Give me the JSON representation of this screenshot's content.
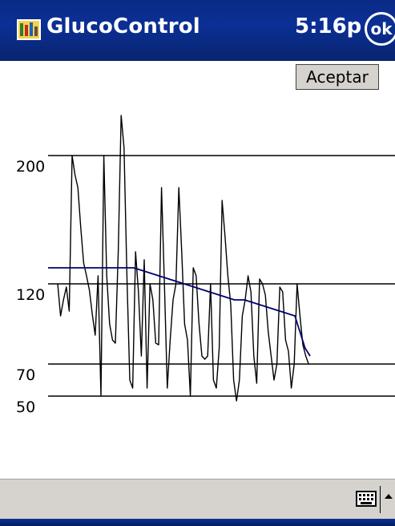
{
  "titlebar": {
    "app_title": "GlucoControl",
    "clock": "5:16p",
    "ok_label": "ok",
    "icon": "app-icon"
  },
  "toolbar": {
    "accept_label": "Aceptar"
  },
  "chart_data": {
    "type": "line",
    "title": "",
    "xlabel": "",
    "ylabel": "",
    "ylim": [
      0,
      250
    ],
    "y_tick_labels": [
      "200",
      "120",
      "70",
      "50"
    ],
    "reference_lines": [
      200,
      120,
      70,
      50
    ],
    "grid": false,
    "series": [
      {
        "color": "#000000",
        "values": [
          120,
          100,
          110,
          118,
          103,
          200,
          188,
          180,
          155,
          133,
          125,
          116,
          101,
          88,
          125,
          50,
          200,
          125,
          95,
          85,
          83,
          140,
          225,
          205,
          125,
          60,
          55,
          140,
          115,
          75,
          135,
          55,
          120,
          110,
          83,
          82,
          180,
          120,
          55,
          85,
          110,
          120,
          180,
          140,
          95,
          85,
          50,
          130,
          125,
          95,
          75,
          73,
          75,
          120,
          60,
          55,
          80,
          172,
          150,
          125,
          107,
          60,
          47,
          60,
          100,
          110,
          125,
          115,
          75,
          58,
          123,
          120,
          113,
          90,
          75,
          60,
          70,
          118,
          115,
          85,
          78,
          55,
          70,
          120,
          100,
          82,
          75,
          70
        ]
      },
      {
        "color": "#00006e",
        "values": [
          130,
          130,
          130,
          130,
          130,
          130,
          130,
          130,
          130,
          130,
          130,
          130,
          130,
          130,
          130,
          130,
          130,
          130,
          129,
          128,
          127,
          126,
          125,
          124,
          123,
          122,
          121,
          120,
          119,
          118,
          117,
          116,
          115,
          114,
          113,
          112,
          111,
          110,
          110,
          110,
          109,
          108,
          107,
          106,
          105,
          104,
          103,
          102,
          101,
          100,
          90,
          80,
          75
        ]
      }
    ]
  },
  "bottombar": {
    "keyboard_icon": "keyboard-icon",
    "menu_icon": "input-menu-arrow-icon"
  }
}
